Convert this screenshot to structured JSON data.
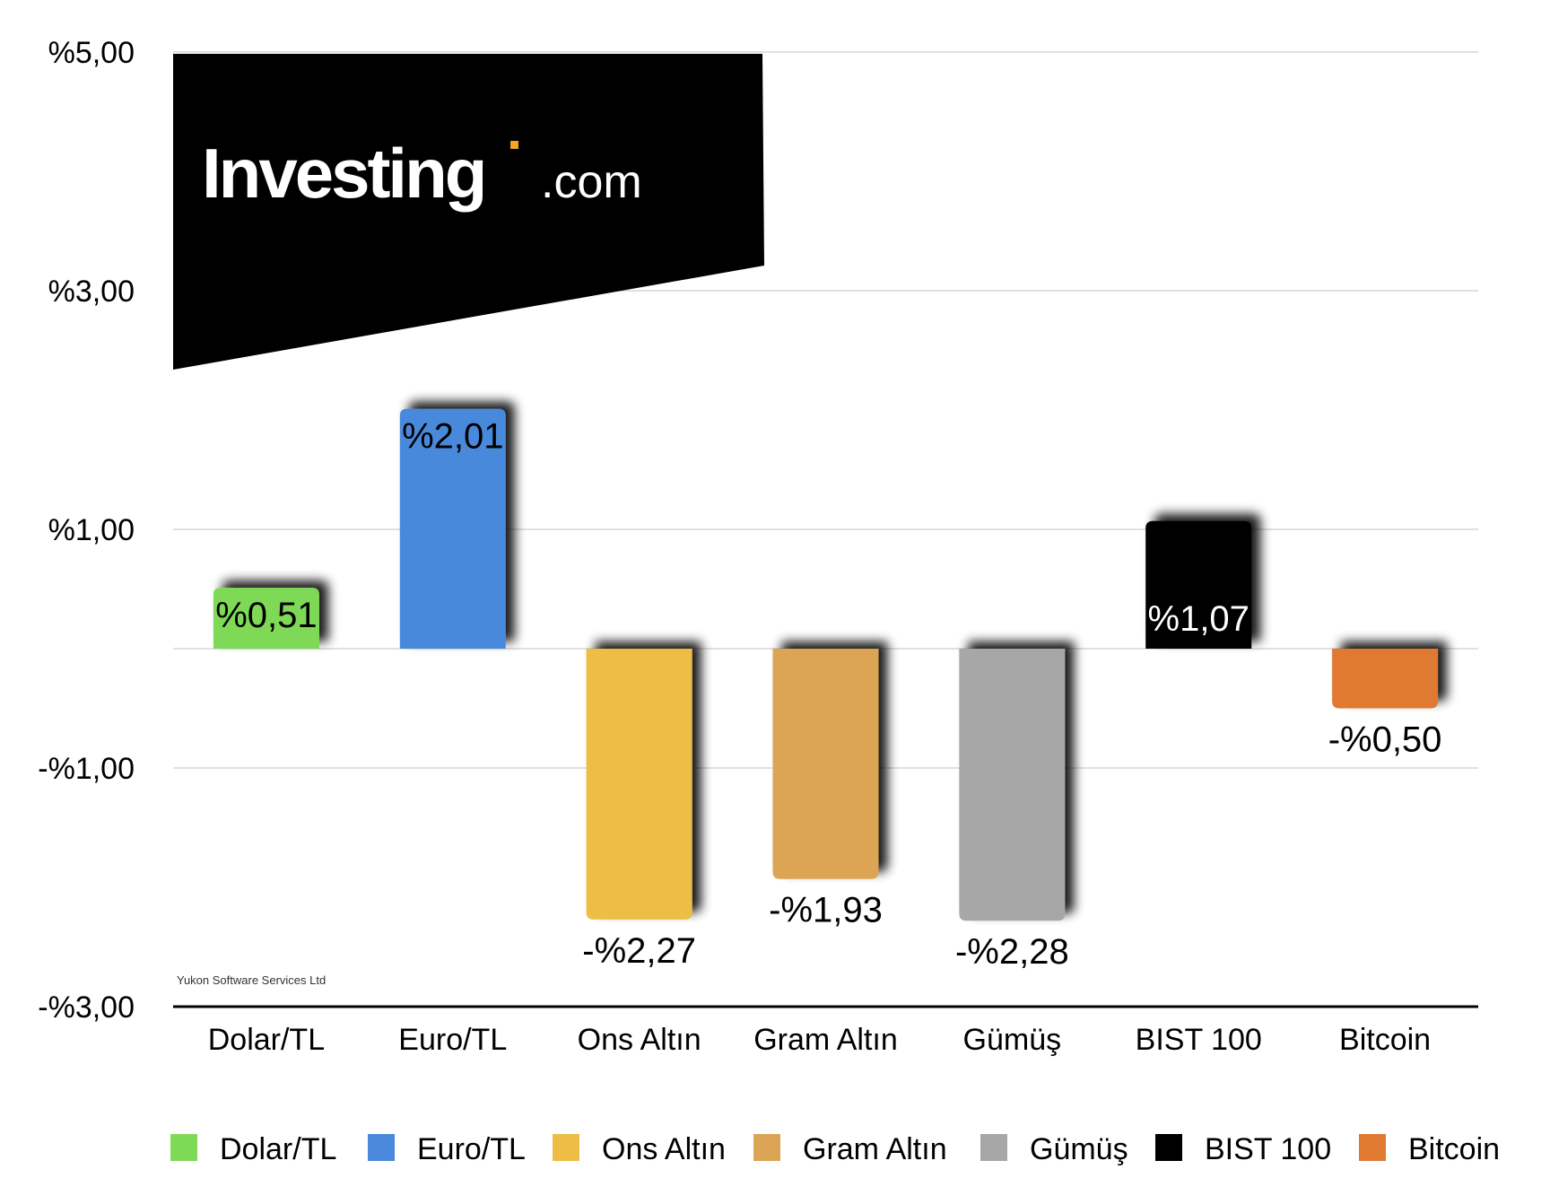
{
  "logo": {
    "text_main": "Investing",
    "text_suffix": ".com"
  },
  "watermark": "Yukon Software Services Ltd",
  "chart_data": {
    "type": "bar",
    "categories": [
      "Dolar/TL",
      "Euro/TL",
      "Ons Altın",
      "Gram Altın",
      "Gümüş",
      "BIST 100",
      "Bitcoin"
    ],
    "values": [
      0.51,
      2.01,
      -2.27,
      -1.93,
      -2.28,
      1.07,
      -0.5
    ],
    "value_labels": [
      "%0,51",
      "%2,01",
      "-%2,27",
      "-%1,93",
      "-%2,28",
      "%1,07",
      "-%0,50"
    ],
    "colors": [
      "#7ED957",
      "#4A89DC",
      "#EDBD45",
      "#DBA555",
      "#A7A7A7",
      "#000000",
      "#E07A33"
    ],
    "ylim": [
      -3,
      5
    ],
    "yticks": [
      5,
      3,
      1,
      -1,
      -3
    ],
    "ytick_labels": [
      "%5,00",
      "%3,00",
      "%1,00",
      "-%1,00",
      "-%3,00"
    ],
    "legend": [
      "Dolar/TL",
      "Euro/TL",
      "Ons Altın",
      "Gram Altın",
      "Gümüş",
      "BIST 100",
      "Bitcoin"
    ],
    "legend_position": "bottom",
    "grid": true,
    "title": "",
    "xlabel": "",
    "ylabel": ""
  }
}
